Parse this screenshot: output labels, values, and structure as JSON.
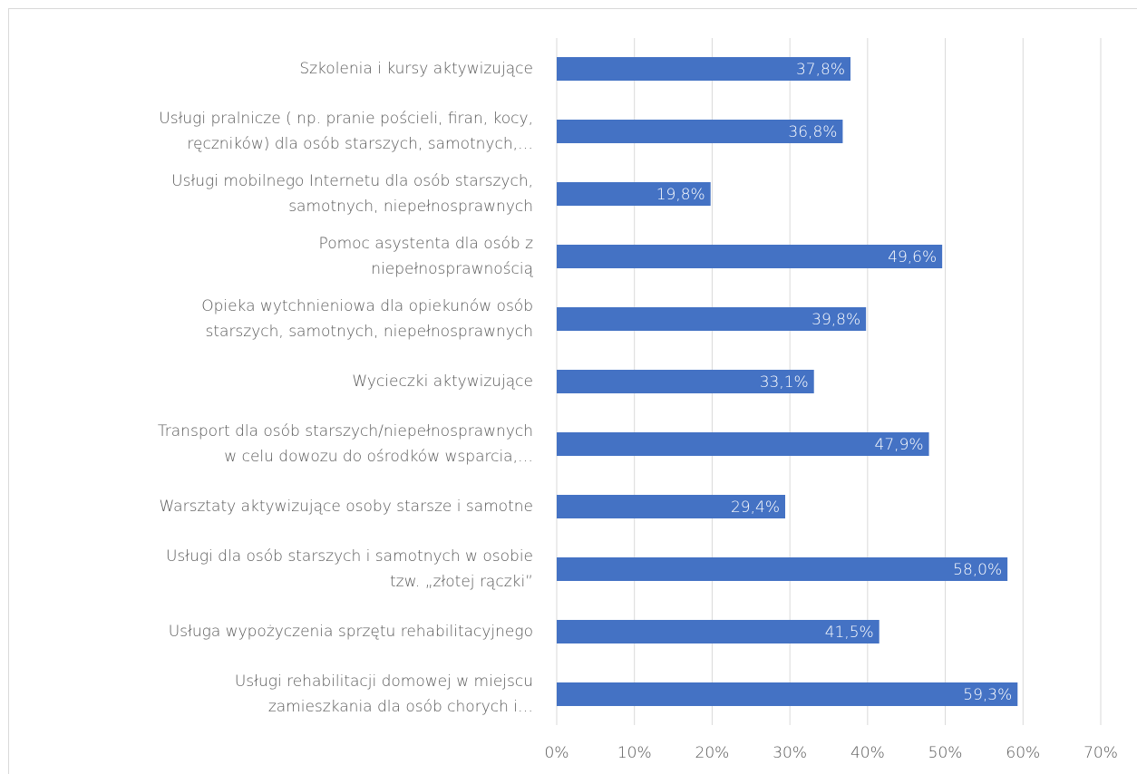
{
  "chart_data": {
    "type": "bar",
    "orientation": "horizontal",
    "categories": [
      [
        "Szkolenia i kursy aktywizujące"
      ],
      [
        "Usługi pralnicze ( np. pranie pościeli, firan, kocy,",
        "ręczników) dla osób starszych, samotnych,…"
      ],
      [
        "Usługi mobilnego Internetu dla osób starszych,",
        "samotnych, niepełnosprawnych"
      ],
      [
        "Pomoc asystenta dla osób z",
        "niepełnosprawnością"
      ],
      [
        "Opieka wytchnieniowa dla opiekunów osób",
        "starszych, samotnych, niepełnosprawnych"
      ],
      [
        "Wycieczki aktywizujące"
      ],
      [
        "Transport dla osób starszych/niepełnosprawnych",
        "w celu dowozu do ośrodków wsparcia,…"
      ],
      [
        "Warsztaty aktywizujące osoby starsze i samotne"
      ],
      [
        "Usługi dla osób starszych i samotnych w osobie",
        "tzw. „złotej rączki”"
      ],
      [
        "Usługa wypożyczenia sprzętu rehabilitacyjnego"
      ],
      [
        "Usługi rehabilitacji domowej w miejscu",
        "zamieszkania dla osób chorych i…"
      ]
    ],
    "values": [
      37.8,
      36.8,
      19.8,
      49.6,
      39.8,
      33.1,
      47.9,
      29.4,
      58.0,
      41.5,
      59.3
    ],
    "value_labels": [
      "37,8%",
      "36,8%",
      "19,8%",
      "49,6%",
      "39,8%",
      "33,1%",
      "47,9%",
      "29,4%",
      "58,0%",
      "41,5%",
      "59,3%"
    ],
    "color": "#4472c4",
    "xlim": [
      0,
      70
    ],
    "xticks": [
      {
        "value": 0,
        "label": "0%"
      },
      {
        "value": 10,
        "label": "10%"
      },
      {
        "value": 20,
        "label": "20%"
      },
      {
        "value": 30,
        "label": "30%"
      },
      {
        "value": 40,
        "label": "40%"
      },
      {
        "value": 50,
        "label": "50%"
      },
      {
        "value": 60,
        "label": "60%"
      },
      {
        "value": 70,
        "label": "70%"
      }
    ],
    "grid": true
  }
}
